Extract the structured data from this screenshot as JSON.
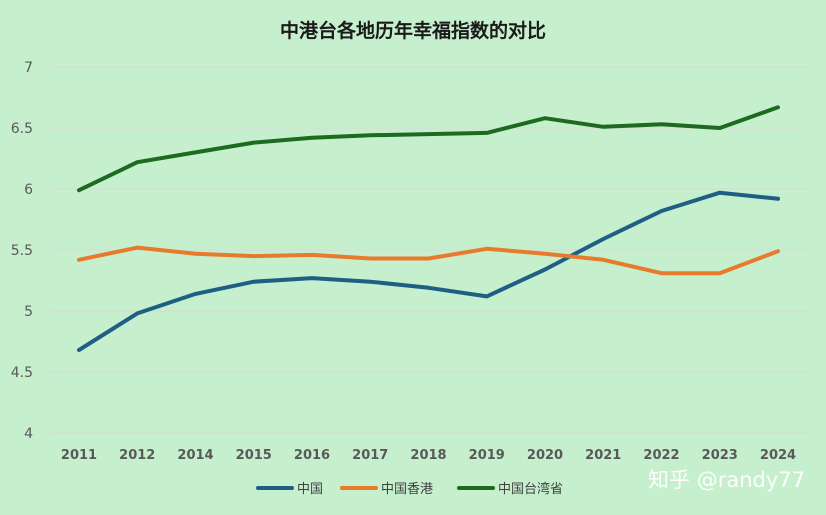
{
  "chart_data": {
    "type": "line",
    "title": "中港台各地历年幸福指数的对比",
    "categories": [
      "2011",
      "2012",
      "2014",
      "2015",
      "2016",
      "2017",
      "2018",
      "2019",
      "2020",
      "2021",
      "2022",
      "2023",
      "2024"
    ],
    "ylim": [
      4,
      7
    ],
    "yticks": [
      "4",
      "4.5",
      "5",
      "5.5",
      "6",
      "6.5",
      "7"
    ],
    "grid": true,
    "legend_position": "bottom",
    "series": [
      {
        "name": "中国",
        "color": "#1f5f84",
        "values": [
          4.68,
          4.98,
          5.14,
          5.24,
          5.27,
          5.24,
          5.19,
          5.12,
          5.34,
          5.59,
          5.82,
          5.97,
          5.92
        ]
      },
      {
        "name": "中国香港",
        "color": "#e87a2c",
        "values": [
          5.42,
          5.52,
          5.47,
          5.45,
          5.46,
          5.43,
          5.43,
          5.51,
          5.47,
          5.42,
          5.31,
          5.31,
          5.49
        ]
      },
      {
        "name": "中国台湾省",
        "color": "#1d6b1f",
        "values": [
          5.99,
          6.22,
          6.3,
          6.38,
          6.42,
          6.44,
          6.45,
          6.46,
          6.58,
          6.51,
          6.53,
          6.5,
          6.67
        ]
      }
    ]
  },
  "watermark": "知乎 @randy77"
}
